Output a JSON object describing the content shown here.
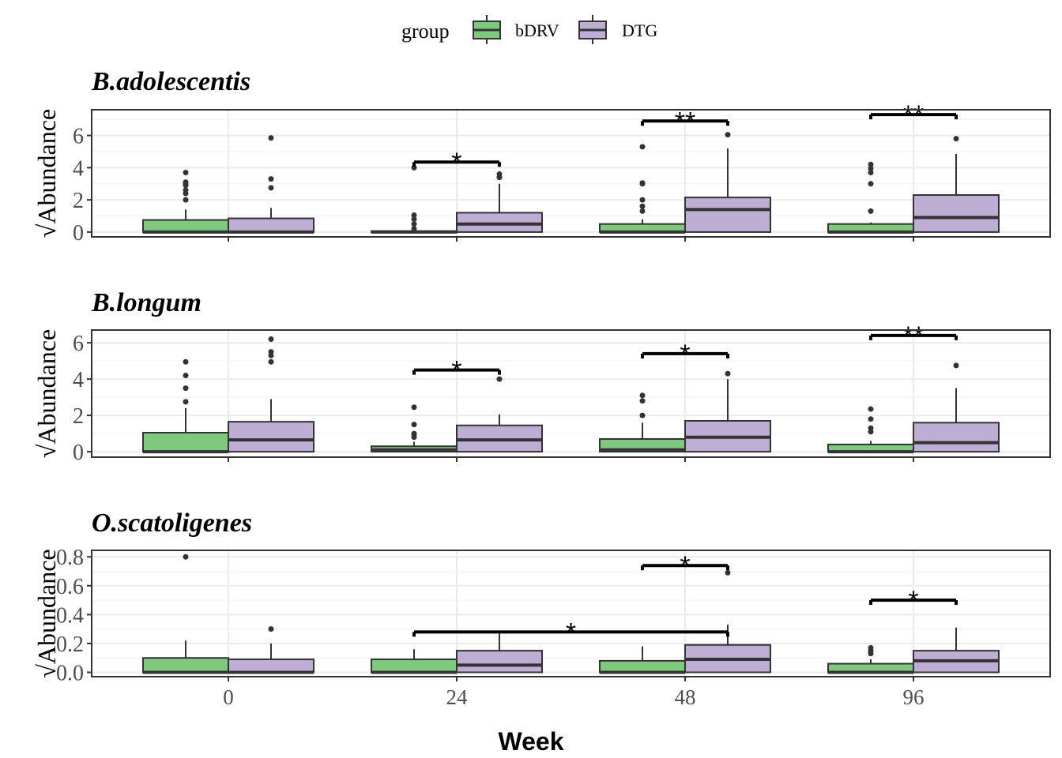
{
  "legend": {
    "title": "group",
    "items": [
      {
        "label": "bDRV",
        "color": "#7fc97f"
      },
      {
        "label": "DTG",
        "color": "#beaed4"
      }
    ]
  },
  "xlabel": "Week",
  "ylabel": "Abundance",
  "sqrt_symbol": "√",
  "chart_data": [
    {
      "type": "box",
      "title": "B.adolescentis",
      "categories": [
        "0",
        "24",
        "48",
        "96"
      ],
      "ylim": [
        -0.3,
        7.6
      ],
      "yticks": [
        0,
        2,
        4,
        6
      ],
      "series": [
        {
          "name": "bDRV",
          "boxes": [
            {
              "q1": 0,
              "median": 0,
              "q3": 0.75,
              "lo": 0,
              "hi": 1.4,
              "out": [
                2.0,
                2.4,
                2.6,
                2.9,
                3.0,
                3.1,
                3.7
              ]
            },
            {
              "q1": 0,
              "median": 0,
              "q3": 0.06,
              "lo": 0,
              "hi": 0.06,
              "out": [
                0.2,
                0.5,
                0.8,
                1.05,
                4.0
              ]
            },
            {
              "q1": 0,
              "median": 0,
              "q3": 0.5,
              "lo": 0,
              "hi": 0.8,
              "out": [
                1.3,
                1.6,
                2.0,
                3.0,
                3.05,
                5.3
              ]
            },
            {
              "q1": 0,
              "median": 0,
              "q3": 0.5,
              "lo": 0,
              "hi": 0.6,
              "out": [
                1.3,
                3.0,
                3.7,
                3.95,
                4.2
              ]
            }
          ]
        },
        {
          "name": "DTG",
          "boxes": [
            {
              "q1": 0,
              "median": 0,
              "q3": 0.85,
              "lo": 0,
              "hi": 1.5,
              "out": [
                2.75,
                3.3,
                5.85
              ]
            },
            {
              "q1": 0,
              "median": 0.5,
              "q3": 1.2,
              "lo": 0,
              "hi": 3.0,
              "out": [
                3.4,
                3.6
              ]
            },
            {
              "q1": 0,
              "median": 1.4,
              "q3": 2.15,
              "lo": 0,
              "hi": 5.2,
              "out": [
                6.05
              ]
            },
            {
              "q1": 0,
              "median": 0.9,
              "q3": 2.3,
              "lo": 0,
              "hi": 4.85,
              "out": [
                5.8
              ]
            }
          ]
        }
      ],
      "annotations": [
        {
          "from": 1,
          "to": 1,
          "y": 4.35,
          "label": "*"
        },
        {
          "from": 2,
          "to": 2,
          "y": 6.9,
          "label": "**"
        },
        {
          "from": 3,
          "to": 3,
          "y": 7.3,
          "label": "**"
        }
      ]
    },
    {
      "type": "box",
      "title": "B.longum",
      "categories": [
        "0",
        "24",
        "48",
        "96"
      ],
      "ylim": [
        -0.3,
        6.7
      ],
      "yticks": [
        0,
        2,
        4,
        6
      ],
      "series": [
        {
          "name": "bDRV",
          "boxes": [
            {
              "q1": 0,
              "median": 0,
              "q3": 1.05,
              "lo": 0,
              "hi": 2.4,
              "out": [
                2.75,
                3.5,
                4.2,
                4.95
              ]
            },
            {
              "q1": 0,
              "median": 0.1,
              "q3": 0.3,
              "lo": 0,
              "hi": 0.55,
              "out": [
                0.8,
                0.95,
                1.0,
                1.5,
                2.45
              ]
            },
            {
              "q1": 0,
              "median": 0.1,
              "q3": 0.7,
              "lo": 0,
              "hi": 1.6,
              "out": [
                2.0,
                2.8,
                3.1
              ]
            },
            {
              "q1": 0,
              "median": 0,
              "q3": 0.4,
              "lo": 0,
              "hi": 0.6,
              "out": [
                1.1,
                1.3,
                1.8,
                2.35
              ]
            }
          ]
        },
        {
          "name": "DTG",
          "boxes": [
            {
              "q1": 0,
              "median": 0.65,
              "q3": 1.65,
              "lo": 0,
              "hi": 2.9,
              "out": [
                4.95,
                5.3,
                5.5,
                6.2
              ]
            },
            {
              "q1": 0,
              "median": 0.65,
              "q3": 1.45,
              "lo": 0,
              "hi": 2.05,
              "out": [
                4.0
              ]
            },
            {
              "q1": 0,
              "median": 0.8,
              "q3": 1.7,
              "lo": 0,
              "hi": 4.0,
              "out": [
                4.3
              ]
            },
            {
              "q1": 0,
              "median": 0.5,
              "q3": 1.6,
              "lo": 0,
              "hi": 3.5,
              "out": [
                4.75
              ]
            }
          ]
        }
      ],
      "annotations": [
        {
          "from": 1,
          "to": 1,
          "y": 4.5,
          "label": "*"
        },
        {
          "from": 2,
          "to": 2,
          "y": 5.4,
          "label": "*"
        },
        {
          "from": 3,
          "to": 3,
          "y": 6.4,
          "label": "**"
        }
      ]
    },
    {
      "type": "box",
      "title": "O.scatoligenes",
      "categories": [
        "0",
        "24",
        "48",
        "96"
      ],
      "ylim": [
        -0.03,
        0.845
      ],
      "yticks": [
        0.0,
        0.2,
        0.4,
        0.6,
        0.8
      ],
      "ytick_labels": [
        "0.0",
        "0.2",
        "0.4",
        "0.6",
        "0.8"
      ],
      "series": [
        {
          "name": "bDRV",
          "boxes": [
            {
              "q1": 0,
              "median": 0,
              "q3": 0.1,
              "lo": 0,
              "hi": 0.22,
              "out": [
                0.8
              ]
            },
            {
              "q1": 0,
              "median": 0,
              "q3": 0.09,
              "lo": 0,
              "hi": 0.16,
              "out": []
            },
            {
              "q1": 0,
              "median": 0,
              "q3": 0.08,
              "lo": 0,
              "hi": 0.18,
              "out": []
            },
            {
              "q1": 0,
              "median": 0,
              "q3": 0.06,
              "lo": 0,
              "hi": 0.09,
              "out": [
                0.13,
                0.15,
                0.17
              ]
            }
          ]
        },
        {
          "name": "DTG",
          "boxes": [
            {
              "q1": 0,
              "median": 0,
              "q3": 0.09,
              "lo": 0,
              "hi": 0.2,
              "out": [
                0.3
              ]
            },
            {
              "q1": 0,
              "median": 0.05,
              "q3": 0.15,
              "lo": 0,
              "hi": 0.27,
              "out": []
            },
            {
              "q1": 0,
              "median": 0.09,
              "q3": 0.19,
              "lo": 0,
              "hi": 0.33,
              "out": [
                0.69
              ]
            },
            {
              "q1": 0,
              "median": 0.08,
              "q3": 0.15,
              "lo": 0,
              "hi": 0.31,
              "out": []
            }
          ]
        }
      ],
      "annotations": [
        {
          "from": 1,
          "to": 2,
          "y": 0.28,
          "label": "*"
        },
        {
          "from": 2,
          "to": 2,
          "y": 0.74,
          "label": "*"
        },
        {
          "from": 3,
          "to": 3,
          "y": 0.5,
          "label": "*"
        }
      ]
    }
  ]
}
